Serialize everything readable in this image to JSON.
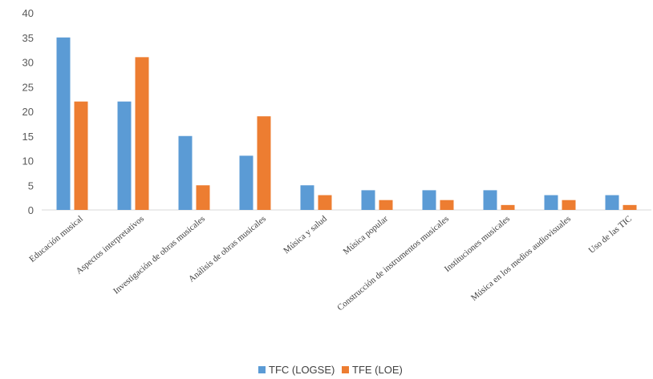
{
  "chart_data": {
    "type": "bar",
    "categories": [
      "Educación musical",
      "Aspectos interpretativos",
      "Investigación de obras musicales",
      "Análisis de obras musicales",
      "Música y salud",
      "Música popular",
      "Construcción de instrumentos musicales",
      "Instituciones musicales",
      "Música en los medios audiovisuales",
      "Uso de las TIC"
    ],
    "series": [
      {
        "name": "TFC (LOGSE)",
        "color": "#5b9bd5",
        "values": [
          35,
          22,
          15,
          11,
          5,
          4,
          4,
          4,
          3,
          3
        ]
      },
      {
        "name": "TFE (LOE)",
        "color": "#ed7d31",
        "values": [
          22,
          31,
          5,
          19,
          3,
          2,
          2,
          1,
          2,
          1
        ]
      }
    ],
    "yticks": [
      "0",
      "5",
      "10",
      "15",
      "20",
      "25",
      "30",
      "35",
      "40"
    ],
    "ylim": [
      0,
      40
    ],
    "grid": false,
    "legend_position": "bottom"
  }
}
